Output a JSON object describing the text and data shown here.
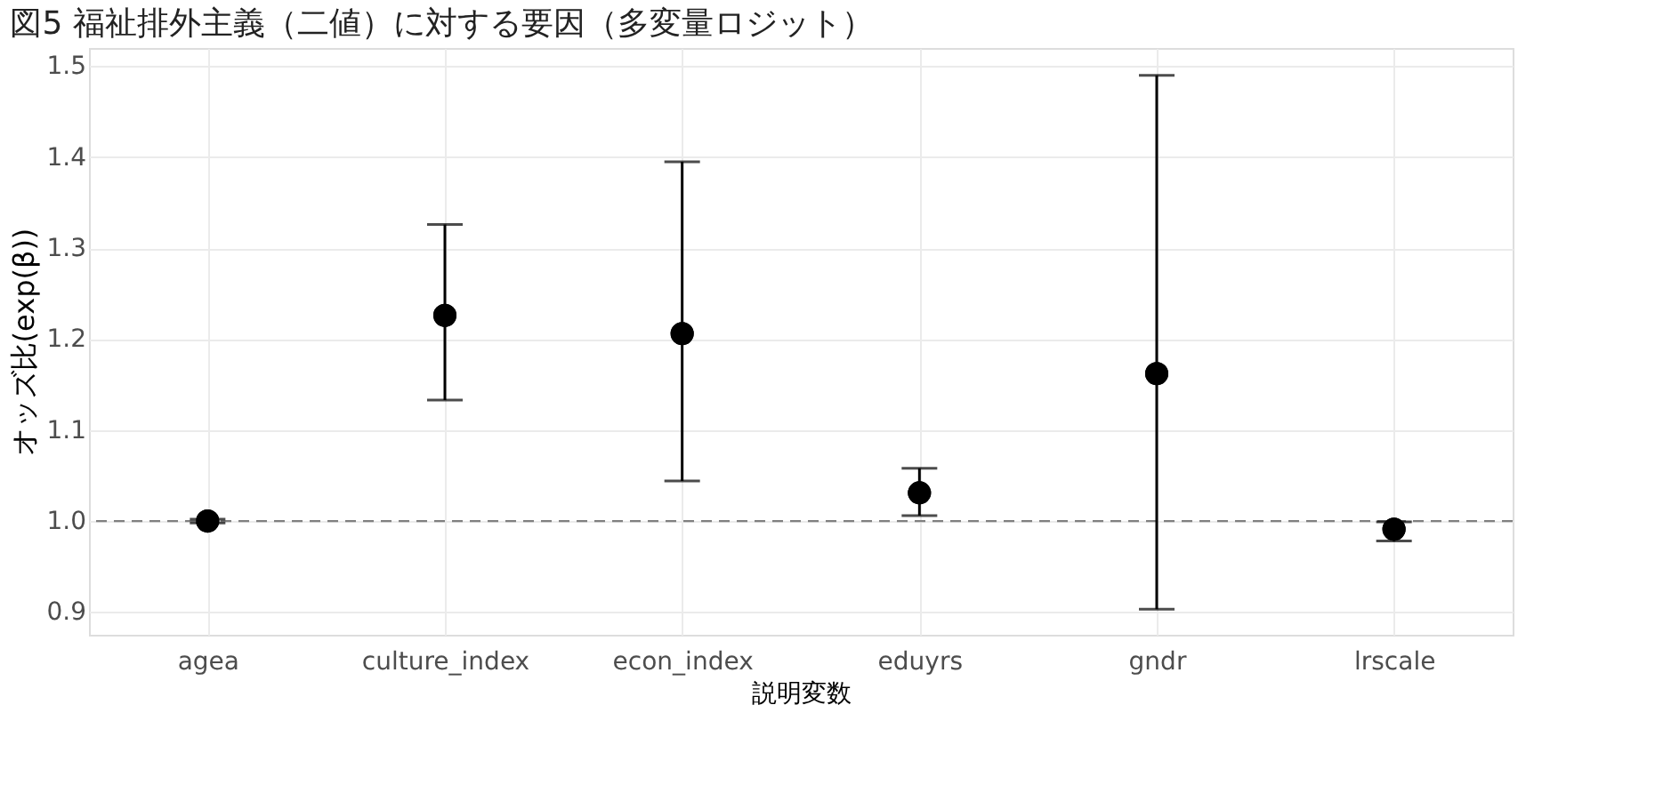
{
  "chart_data": {
    "type": "scatter",
    "title": "図5  福祉排外主義（二値）に対する要因（多変量ロジット）",
    "xlabel": "説明変数",
    "ylabel": "オッズ比(exp(β))",
    "categories": [
      "agea",
      "culture_index",
      "econ_index",
      "eduyrs",
      "gndr",
      "lrscale"
    ],
    "values": [
      1.0,
      1.226,
      1.206,
      1.031,
      1.162,
      0.991
    ],
    "errors": [
      [
        0.998,
        1.002
      ],
      [
        1.133,
        1.326
      ],
      [
        1.044,
        1.395
      ],
      [
        1.006,
        1.058
      ],
      [
        0.903,
        1.49
      ],
      [
        0.978,
        0.999
      ]
    ],
    "color": "#000000",
    "marker": "circle",
    "ylim": [
      0.875,
      1.52
    ],
    "yticks": [
      {
        "value": 0.9,
        "label": "0.9"
      },
      {
        "value": 1.0,
        "label": "1.0"
      },
      {
        "value": 1.1,
        "label": "1.1"
      },
      {
        "value": 1.2,
        "label": "1.2"
      },
      {
        "value": 1.3,
        "label": "1.3"
      },
      {
        "value": 1.4,
        "label": "1.4"
      },
      {
        "value": 1.5,
        "label": "1.5"
      }
    ],
    "ref_lines": [
      {
        "axis": "y",
        "value": 1.0,
        "label": null,
        "color": "#808080",
        "line_style": "dashed"
      }
    ],
    "grid": true
  }
}
